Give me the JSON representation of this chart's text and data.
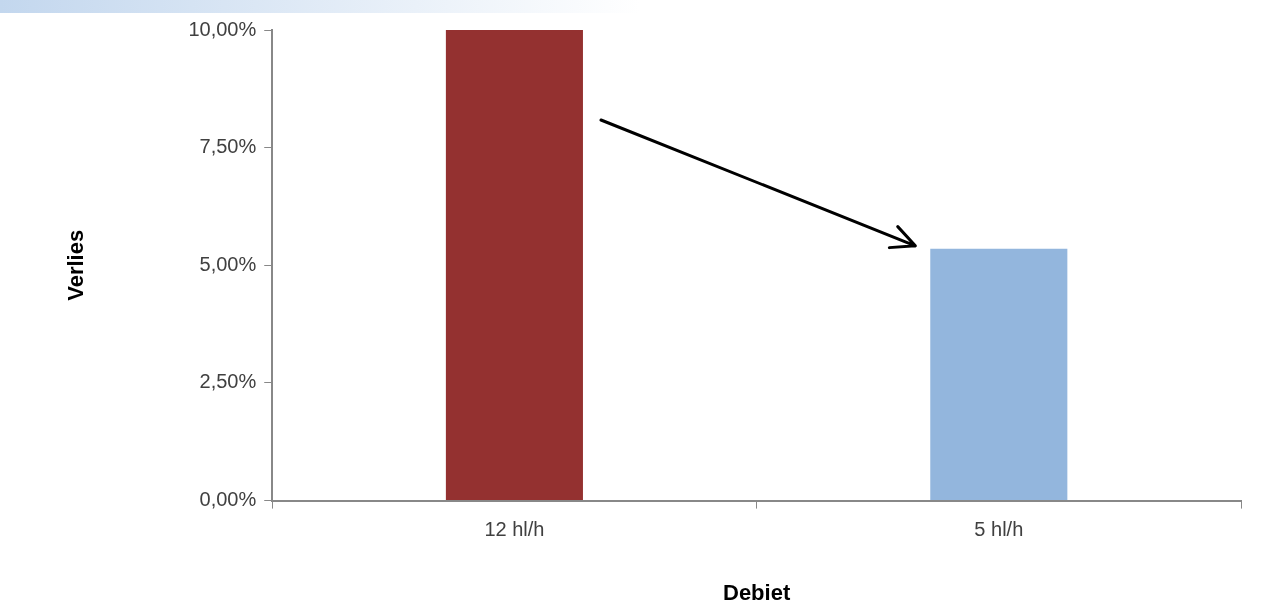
{
  "chart_data": {
    "type": "bar",
    "xlabel": "Debiet",
    "ylabel": "Verlies",
    "categories": [
      "12 hl/h",
      "5 hl/h"
    ],
    "values": [
      10,
      5.35
    ],
    "colors": [
      "#943130",
      "#93b6dd"
    ],
    "ylim": [
      0,
      10
    ],
    "yticks": [
      {
        "value": 0,
        "label": "0,00%"
      },
      {
        "value": 2.5,
        "label": "2,50%"
      },
      {
        "value": 5,
        "label": "5,00%"
      },
      {
        "value": 7.5,
        "label": "7,50%"
      },
      {
        "value": 10,
        "label": "10,00%"
      }
    ],
    "grid": false
  }
}
